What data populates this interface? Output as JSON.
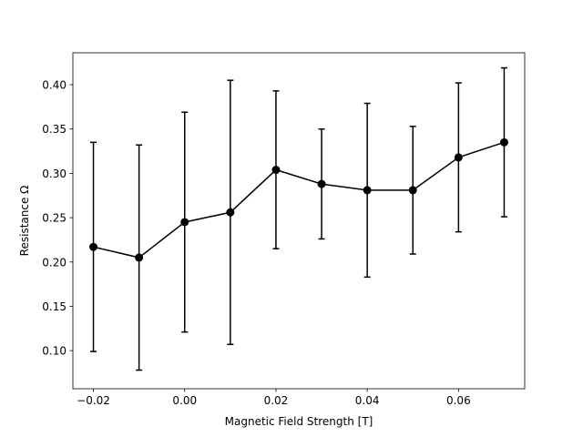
{
  "chart_data": {
    "type": "line",
    "title": "",
    "xlabel": "Magnetic Field Strength [T]",
    "ylabel": "Resistance Ω",
    "xlim": [
      -0.0245,
      0.0745
    ],
    "ylim": [
      0.057,
      0.436
    ],
    "xticks": [
      -0.02,
      0.0,
      0.02,
      0.04,
      0.06
    ],
    "xtick_labels": [
      "−0.02",
      "0.00",
      "0.02",
      "0.04",
      "0.06"
    ],
    "yticks": [
      0.1,
      0.15,
      0.2,
      0.25,
      0.3,
      0.35,
      0.4
    ],
    "ytick_labels": [
      "0.10",
      "0.15",
      "0.20",
      "0.25",
      "0.30",
      "0.35",
      "0.40"
    ],
    "grid": false,
    "series": [
      {
        "name": "Resistance",
        "color": "#000000",
        "marker": "circle",
        "x": [
          -0.02,
          -0.01,
          0.0,
          0.01,
          0.02,
          0.03,
          0.04,
          0.05,
          0.06,
          0.07
        ],
        "y": [
          0.217,
          0.205,
          0.245,
          0.256,
          0.304,
          0.288,
          0.281,
          0.281,
          0.318,
          0.335
        ],
        "yerr": [
          0.118,
          0.127,
          0.124,
          0.149,
          0.089,
          0.062,
          0.098,
          0.072,
          0.084,
          0.084
        ]
      }
    ]
  }
}
